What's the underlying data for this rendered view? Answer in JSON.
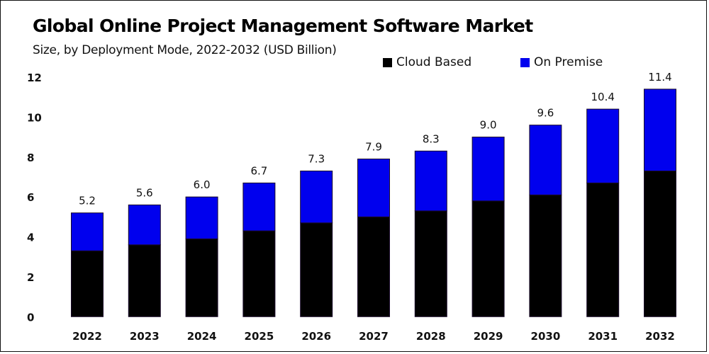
{
  "chart_data": {
    "type": "bar",
    "stacked": true,
    "title": "Global Online Project Management  Software Market",
    "subtitle": "Size, by Deployment Mode, 2022-2032 (USD Billion)",
    "xlabel": "",
    "ylabel": "",
    "ylim": [
      0,
      12
    ],
    "yticks": [
      0,
      2,
      4,
      6,
      8,
      10,
      12
    ],
    "grid": false,
    "legend_placement": "top-center",
    "categories": [
      "2022",
      "2023",
      "2024",
      "2025",
      "2026",
      "2027",
      "2028",
      "2029",
      "2030",
      "2031",
      "2032"
    ],
    "series": [
      {
        "name": "Cloud Based",
        "color": "#000000",
        "values": [
          3.3,
          3.6,
          3.9,
          4.3,
          4.7,
          5.0,
          5.3,
          5.8,
          6.1,
          6.7,
          7.3
        ]
      },
      {
        "name": "On Premise",
        "color": "#0000ee",
        "values": [
          1.9,
          2.0,
          2.1,
          2.4,
          2.6,
          2.9,
          3.0,
          3.2,
          3.5,
          3.7,
          4.1
        ]
      }
    ],
    "totals": [
      "5.2",
      "5.6",
      "6.0",
      "6.7",
      "7.3",
      "7.9",
      "8.3",
      "9.0",
      "9.6",
      "10.4",
      "11.4"
    ]
  }
}
